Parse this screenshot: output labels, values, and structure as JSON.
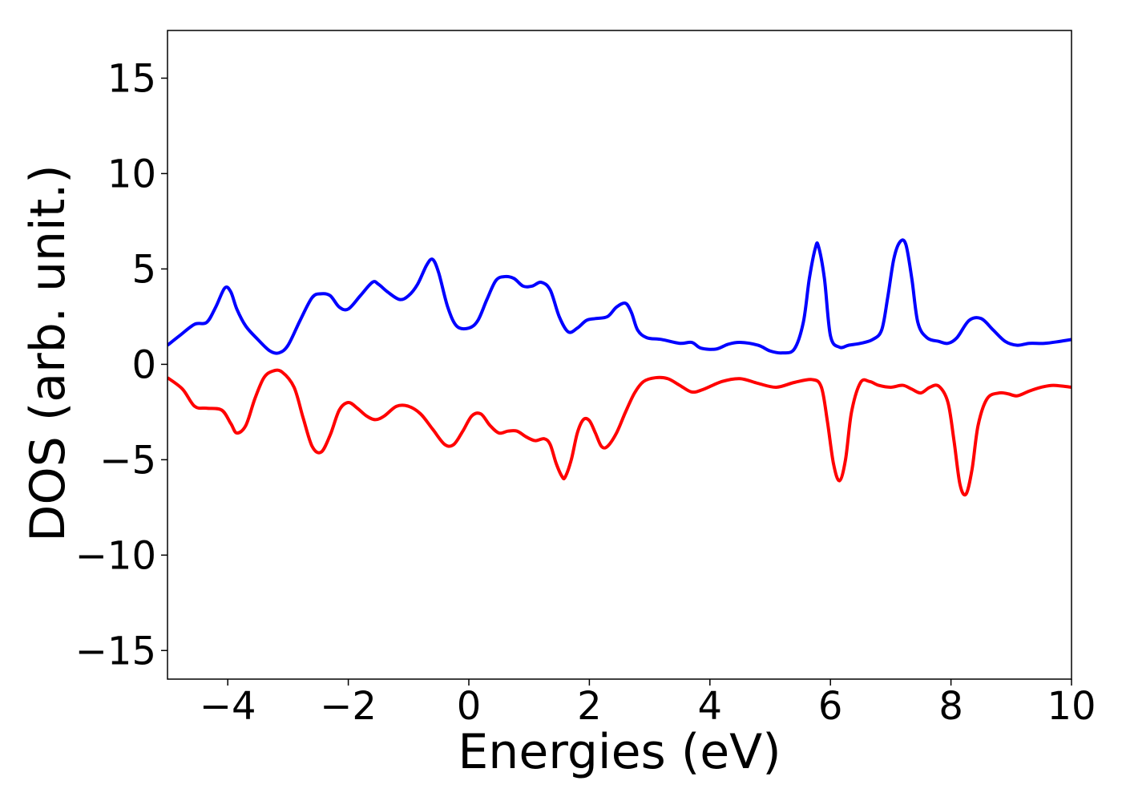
{
  "chart_data": {
    "type": "line",
    "title": "",
    "xlabel": "Energies (eV)",
    "ylabel": "DOS (arb. unit.)",
    "xlim": [
      -5,
      10
    ],
    "ylim": [
      -16.5,
      17.5
    ],
    "xticks": [
      -4,
      -2,
      0,
      2,
      4,
      6,
      8,
      10
    ],
    "xtick_labels": [
      "−4",
      "−2",
      "0",
      "2",
      "4",
      "6",
      "8",
      "10"
    ],
    "yticks": [
      -15,
      -10,
      -5,
      0,
      5,
      10,
      15
    ],
    "ytick_labels": [
      "−15",
      "−10",
      "−5",
      "0",
      "5",
      "10",
      "15"
    ],
    "grid": false,
    "series": [
      {
        "color": "#0000ff",
        "x": [
          -5.0,
          -4.8,
          -4.55,
          -4.35,
          -4.2,
          -4.05,
          -3.95,
          -3.85,
          -3.7,
          -3.5,
          -3.3,
          -3.15,
          -3.0,
          -2.8,
          -2.6,
          -2.45,
          -2.3,
          -2.15,
          -2.0,
          -1.8,
          -1.6,
          -1.5,
          -1.35,
          -1.15,
          -1.0,
          -0.85,
          -0.7,
          -0.6,
          -0.5,
          -0.35,
          -0.2,
          0.0,
          0.15,
          0.3,
          0.45,
          0.6,
          0.75,
          0.9,
          1.05,
          1.2,
          1.35,
          1.5,
          1.65,
          1.8,
          1.95,
          2.1,
          2.3,
          2.45,
          2.6,
          2.7,
          2.8,
          2.95,
          3.2,
          3.5,
          3.7,
          3.85,
          4.1,
          4.3,
          4.5,
          4.8,
          5.0,
          5.2,
          5.4,
          5.55,
          5.65,
          5.75,
          5.8,
          5.9,
          6.0,
          6.15,
          6.3,
          6.5,
          6.7,
          6.85,
          6.95,
          7.05,
          7.15,
          7.25,
          7.35,
          7.45,
          7.6,
          7.8,
          7.95,
          8.1,
          8.3,
          8.5,
          8.7,
          8.9,
          9.1,
          9.3,
          9.55,
          9.8,
          10.0
        ],
        "y": [
          1.0,
          1.5,
          2.1,
          2.2,
          3.0,
          4.0,
          3.8,
          2.9,
          2.0,
          1.3,
          0.7,
          0.6,
          1.0,
          2.3,
          3.5,
          3.7,
          3.6,
          3.0,
          2.9,
          3.6,
          4.3,
          4.2,
          3.8,
          3.4,
          3.6,
          4.2,
          5.2,
          5.5,
          4.8,
          3.0,
          2.0,
          1.9,
          2.3,
          3.4,
          4.4,
          4.6,
          4.5,
          4.1,
          4.1,
          4.3,
          3.9,
          2.5,
          1.7,
          1.9,
          2.3,
          2.4,
          2.5,
          3.0,
          3.2,
          2.7,
          1.8,
          1.4,
          1.3,
          1.1,
          1.15,
          0.85,
          0.8,
          1.05,
          1.15,
          1.0,
          0.7,
          0.6,
          0.8,
          2.2,
          4.5,
          6.1,
          6.2,
          4.5,
          1.5,
          0.9,
          1.0,
          1.1,
          1.3,
          1.8,
          3.5,
          5.5,
          6.4,
          6.3,
          4.5,
          2.2,
          1.4,
          1.2,
          1.1,
          1.4,
          2.3,
          2.4,
          1.8,
          1.2,
          1.0,
          1.1,
          1.1,
          1.2,
          1.3
        ]
      },
      {
        "color": "#ff0000",
        "x": [
          -5.0,
          -4.75,
          -4.55,
          -4.35,
          -4.1,
          -3.95,
          -3.85,
          -3.7,
          -3.55,
          -3.4,
          -3.25,
          -3.1,
          -2.9,
          -2.75,
          -2.6,
          -2.45,
          -2.3,
          -2.15,
          -2.0,
          -1.85,
          -1.7,
          -1.55,
          -1.4,
          -1.2,
          -1.0,
          -0.8,
          -0.6,
          -0.4,
          -0.25,
          -0.1,
          0.05,
          0.2,
          0.35,
          0.5,
          0.65,
          0.8,
          0.95,
          1.1,
          1.25,
          1.35,
          1.45,
          1.55,
          1.6,
          1.7,
          1.8,
          1.9,
          2.0,
          2.1,
          2.2,
          2.3,
          2.45,
          2.6,
          2.75,
          2.9,
          3.1,
          3.3,
          3.5,
          3.7,
          3.9,
          4.2,
          4.5,
          4.8,
          5.1,
          5.4,
          5.7,
          5.85,
          5.95,
          6.05,
          6.15,
          6.25,
          6.35,
          6.5,
          6.65,
          6.8,
          7.0,
          7.2,
          7.35,
          7.5,
          7.65,
          7.8,
          7.95,
          8.05,
          8.15,
          8.25,
          8.35,
          8.45,
          8.6,
          8.8,
          8.95,
          9.1,
          9.3,
          9.5,
          9.7,
          10.0
        ],
        "y": [
          -0.7,
          -1.3,
          -2.2,
          -2.3,
          -2.4,
          -3.1,
          -3.6,
          -3.2,
          -1.8,
          -0.7,
          -0.35,
          -0.4,
          -1.2,
          -2.8,
          -4.3,
          -4.6,
          -3.7,
          -2.4,
          -2.0,
          -2.3,
          -2.7,
          -2.9,
          -2.7,
          -2.2,
          -2.2,
          -2.6,
          -3.4,
          -4.2,
          -4.2,
          -3.5,
          -2.7,
          -2.6,
          -3.2,
          -3.6,
          -3.5,
          -3.5,
          -3.8,
          -4.0,
          -3.9,
          -4.2,
          -5.2,
          -5.9,
          -5.9,
          -5.0,
          -3.6,
          -2.9,
          -2.95,
          -3.6,
          -4.3,
          -4.3,
          -3.6,
          -2.5,
          -1.5,
          -0.9,
          -0.7,
          -0.75,
          -1.1,
          -1.45,
          -1.3,
          -0.9,
          -0.75,
          -1.0,
          -1.2,
          -0.95,
          -0.8,
          -1.2,
          -3.0,
          -5.2,
          -6.1,
          -5.0,
          -2.5,
          -0.95,
          -0.9,
          -1.1,
          -1.2,
          -1.1,
          -1.3,
          -1.5,
          -1.2,
          -1.15,
          -2.0,
          -4.0,
          -6.3,
          -6.8,
          -5.5,
          -3.2,
          -1.8,
          -1.5,
          -1.55,
          -1.65,
          -1.4,
          -1.2,
          -1.1,
          -1.2
        ]
      }
    ]
  }
}
